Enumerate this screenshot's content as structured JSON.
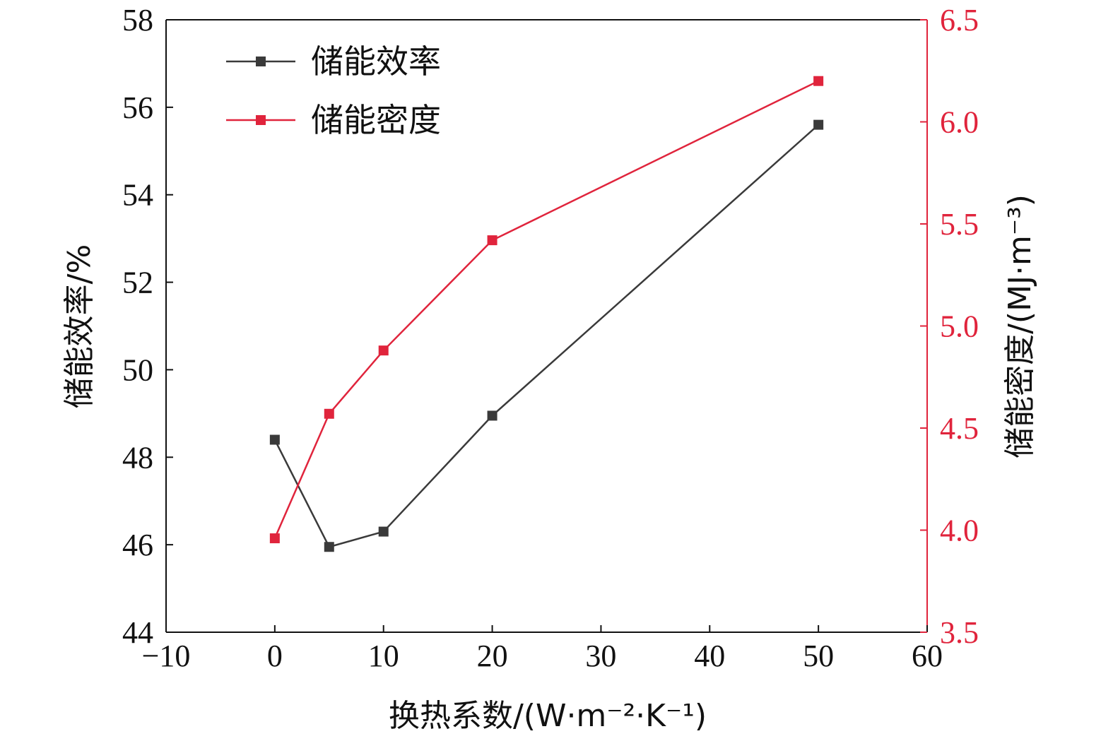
{
  "chart_data": {
    "type": "line",
    "title": "",
    "xlabel": "换热系数/(W·m⁻²·K⁻¹)",
    "ylabel_left": "储能效率/%",
    "ylabel_right": "储能密度/(MJ·m⁻³)",
    "xlim": [
      -10,
      60
    ],
    "ylim_left": [
      44,
      58
    ],
    "ylim_right": [
      3.5,
      6.5
    ],
    "x_ticks": [
      "−10",
      "0",
      "10",
      "20",
      "30",
      "40",
      "50",
      "60"
    ],
    "y_left_ticks": [
      "44",
      "46",
      "48",
      "50",
      "52",
      "54",
      "56",
      "58"
    ],
    "y_right_ticks": [
      "3.5",
      "4.0",
      "4.5",
      "5.0",
      "5.5",
      "6.0",
      "6.5"
    ],
    "x": [
      0,
      5,
      10,
      20,
      50
    ],
    "series": [
      {
        "name": "储能效率",
        "axis": "left",
        "color": "#3a3a3a",
        "values": [
          48.4,
          45.95,
          46.3,
          48.95,
          55.6
        ]
      },
      {
        "name": "储能密度",
        "axis": "right",
        "color": "#e0243c",
        "values": [
          3.96,
          4.57,
          4.88,
          5.42,
          6.2
        ]
      }
    ],
    "legend_position": "top-left",
    "grid": false
  }
}
